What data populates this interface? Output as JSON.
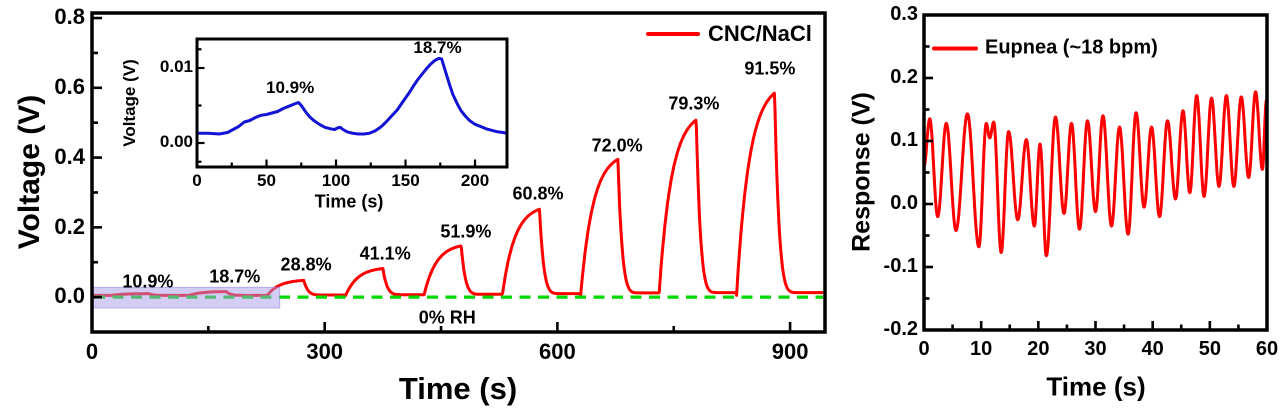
{
  "colors": {
    "series_red": "#ff0000",
    "inset_blue": "#1313d6",
    "zero_line_green": "#00d900",
    "highlight_purple": "#a79be9",
    "axis_black": "#000000"
  },
  "chart_data": [
    {
      "id": "humidity_voltage_response",
      "type": "line",
      "xlabel": "Time (s)",
      "ylabel": "Voltage (V)",
      "legend_label": "CNC/NaCl",
      "legend_position": "top-right",
      "series_color": "#ff0000",
      "grid": false,
      "xlim": [
        0,
        945
      ],
      "ylim": [
        -0.1,
        0.8145
      ],
      "x_major_ticks": [
        0,
        300,
        600,
        900
      ],
      "x_minor_ticks": [
        150,
        450,
        750
      ],
      "y_major_ticks": [
        0.0,
        0.2,
        0.4,
        0.6,
        0.8
      ],
      "y_minor_ticks": [
        0.1,
        0.3,
        0.5,
        0.7
      ],
      "x_tick_decimals": 0,
      "y_tick_decimals": 1,
      "baseline_v": 0.005,
      "cycles": [
        {
          "rh_label": "10.9%",
          "rise_start_s": 25,
          "peak_s": 73,
          "peak_v": 0.01,
          "decay_end_s": 100,
          "valley_v": 0.005,
          "label_t": 72,
          "label_v": 0.044
        },
        {
          "rh_label": "18.7%",
          "rise_start_s": 125,
          "peak_s": 173,
          "peak_v": 0.016,
          "decay_end_s": 198,
          "valley_v": 0.005,
          "label_t": 184,
          "label_v": 0.057
        },
        {
          "rh_label": "28.8%",
          "rise_start_s": 226,
          "peak_s": 273,
          "peak_v": 0.048,
          "decay_end_s": 297,
          "valley_v": 0.006,
          "label_t": 276,
          "label_v": 0.091
        },
        {
          "rh_label": "41.1%",
          "rise_start_s": 327,
          "peak_s": 375,
          "peak_v": 0.082,
          "decay_end_s": 399,
          "valley_v": 0.007,
          "label_t": 378,
          "label_v": 0.125
        },
        {
          "rh_label": "51.9%",
          "rise_start_s": 428,
          "peak_s": 476,
          "peak_v": 0.147,
          "decay_end_s": 500,
          "valley_v": 0.008,
          "label_t": 482,
          "label_v": 0.187
        },
        {
          "rh_label": "60.8%",
          "rise_start_s": 529,
          "peak_s": 577,
          "peak_v": 0.252,
          "decay_end_s": 601,
          "valley_v": 0.01,
          "label_t": 575,
          "label_v": 0.295
        },
        {
          "rh_label": "72.0%",
          "rise_start_s": 630,
          "peak_s": 678,
          "peak_v": 0.395,
          "decay_end_s": 703,
          "valley_v": 0.012,
          "label_t": 677,
          "label_v": 0.434
        },
        {
          "rh_label": "79.3%",
          "rise_start_s": 731,
          "peak_s": 779,
          "peak_v": 0.508,
          "decay_end_s": 804,
          "valley_v": 0.013,
          "label_t": 776,
          "label_v": 0.553
        },
        {
          "rh_label": "91.5%",
          "rise_start_s": 831,
          "peak_s": 880,
          "peak_v": 0.585,
          "decay_end_s": 907,
          "valley_v": 0.013,
          "label_t": 874,
          "label_v": 0.653
        }
      ],
      "zero_line": {
        "v": 0,
        "label": "0% RH",
        "color": "#00d900",
        "label_t": 458,
        "label_v": -0.06
      },
      "highlight_region": {
        "t": [
          0,
          242
        ],
        "v": [
          -0.031,
          0.028
        ],
        "color": "#a79be9",
        "opacity": 0.5
      }
    },
    {
      "id": "inset_low_rh_zoom",
      "type": "line",
      "xlabel": "Time (s)",
      "ylabel": "Voltage (V)",
      "series_color": "#1313d6",
      "grid": false,
      "xlim": [
        0,
        223
      ],
      "ylim": [
        -0.0032,
        0.01387
      ],
      "x_major_ticks": [
        0,
        50,
        100,
        150,
        200
      ],
      "x_minor_ticks": [
        25,
        75,
        125,
        175
      ],
      "y_major_ticks": [
        0.0,
        0.01
      ],
      "y_minor_ticks": [
        -0.0025,
        0.005,
        0.0125
      ],
      "x_tick_decimals": 0,
      "y_tick_decimals": 2,
      "annotations": [
        {
          "text": "10.9%",
          "t": 67,
          "v": 0.0073
        },
        {
          "text": "18.7%",
          "t": 173,
          "v": 0.0127
        }
      ],
      "points": [
        [
          0,
          0.0013
        ],
        [
          8,
          0.0013
        ],
        [
          16,
          0.0012
        ],
        [
          22,
          0.0014
        ],
        [
          26,
          0.0018
        ],
        [
          30,
          0.0022
        ],
        [
          34,
          0.0028
        ],
        [
          38,
          0.003
        ],
        [
          42,
          0.0034
        ],
        [
          46,
          0.0037
        ],
        [
          50,
          0.0038
        ],
        [
          54,
          0.004
        ],
        [
          58,
          0.0042
        ],
        [
          62,
          0.0046
        ],
        [
          66,
          0.0049
        ],
        [
          70,
          0.0052
        ],
        [
          73,
          0.0054
        ],
        [
          75,
          0.005
        ],
        [
          78,
          0.0042
        ],
        [
          81,
          0.0035
        ],
        [
          84,
          0.003
        ],
        [
          88,
          0.0025
        ],
        [
          92,
          0.0021
        ],
        [
          96,
          0.0019
        ],
        [
          99,
          0.0018
        ],
        [
          101,
          0.002
        ],
        [
          103,
          0.0021
        ],
        [
          105,
          0.0018
        ],
        [
          108,
          0.0015
        ],
        [
          112,
          0.0013
        ],
        [
          116,
          0.0012
        ],
        [
          120,
          0.0012
        ],
        [
          124,
          0.0013
        ],
        [
          128,
          0.0016
        ],
        [
          132,
          0.0021
        ],
        [
          136,
          0.0028
        ],
        [
          140,
          0.0036
        ],
        [
          144,
          0.0044
        ],
        [
          147,
          0.0052
        ],
        [
          150,
          0.006
        ],
        [
          153,
          0.0068
        ],
        [
          156,
          0.0077
        ],
        [
          159,
          0.0085
        ],
        [
          162,
          0.0092
        ],
        [
          165,
          0.0099
        ],
        [
          168,
          0.0105
        ],
        [
          171,
          0.011
        ],
        [
          174,
          0.0113
        ],
        [
          176,
          0.0112
        ],
        [
          178,
          0.01
        ],
        [
          180,
          0.0088
        ],
        [
          182,
          0.0076
        ],
        [
          184,
          0.0065
        ],
        [
          187,
          0.0053
        ],
        [
          190,
          0.0043
        ],
        [
          193,
          0.0036
        ],
        [
          196,
          0.003
        ],
        [
          200,
          0.0025
        ],
        [
          204,
          0.0022
        ],
        [
          208,
          0.0019
        ],
        [
          212,
          0.0017
        ],
        [
          216,
          0.0015
        ],
        [
          220,
          0.0014
        ],
        [
          223,
          0.0013
        ]
      ]
    },
    {
      "id": "breathing_response",
      "type": "line",
      "xlabel": "Time (s)",
      "ylabel": "Response (V)",
      "legend_label": "Eupnea (~18 bpm)",
      "legend_position": "top-left",
      "series_color": "#ff0000",
      "grid": false,
      "xlim": [
        0,
        60
      ],
      "ylim": [
        -0.2,
        0.3
      ],
      "x_major_ticks": [
        0,
        10,
        20,
        30,
        40,
        50,
        60
      ],
      "x_minor_ticks": [
        5,
        15,
        25,
        35,
        45,
        55
      ],
      "y_major_ticks": [
        -0.2,
        -0.1,
        0.0,
        0.1,
        0.2,
        0.3
      ],
      "y_minor_ticks": [
        -0.15,
        -0.05,
        0.05,
        0.15,
        0.25
      ],
      "x_tick_decimals": 0,
      "y_tick_decimals": 1,
      "extrema": [
        [
          0,
          0.06
        ],
        [
          1.0,
          0.135
        ],
        [
          2.4,
          -0.02
        ],
        [
          3.9,
          0.128
        ],
        [
          5.6,
          -0.042
        ],
        [
          7.6,
          0.143
        ],
        [
          9.6,
          -0.068
        ],
        [
          10.9,
          0.128
        ],
        [
          11.5,
          0.105
        ],
        [
          12.2,
          0.13
        ],
        [
          13.5,
          -0.077
        ],
        [
          14.8,
          0.115
        ],
        [
          16.4,
          -0.025
        ],
        [
          17.9,
          0.102
        ],
        [
          19.3,
          -0.035
        ],
        [
          20.3,
          0.095
        ],
        [
          21.4,
          -0.082
        ],
        [
          23.0,
          0.138
        ],
        [
          24.5,
          -0.015
        ],
        [
          25.8,
          0.128
        ],
        [
          27.2,
          -0.04
        ],
        [
          28.6,
          0.132
        ],
        [
          30.0,
          -0.012
        ],
        [
          31.3,
          0.14
        ],
        [
          32.8,
          -0.035
        ],
        [
          34.2,
          0.122
        ],
        [
          35.7,
          -0.048
        ],
        [
          37.1,
          0.145
        ],
        [
          38.5,
          -0.005
        ],
        [
          39.8,
          0.122
        ],
        [
          41.2,
          -0.02
        ],
        [
          42.6,
          0.132
        ],
        [
          44.0,
          0.008
        ],
        [
          45.3,
          0.148
        ],
        [
          46.5,
          0.018
        ],
        [
          47.7,
          0.172
        ],
        [
          49.0,
          0.012
        ],
        [
          50.3,
          0.168
        ],
        [
          51.6,
          0.028
        ],
        [
          52.9,
          0.172
        ],
        [
          54.2,
          0.028
        ],
        [
          55.5,
          0.17
        ],
        [
          56.8,
          0.042
        ],
        [
          58.0,
          0.178
        ],
        [
          59.2,
          0.055
        ],
        [
          59.9,
          0.165
        ],
        [
          60,
          0.15
        ]
      ]
    }
  ]
}
